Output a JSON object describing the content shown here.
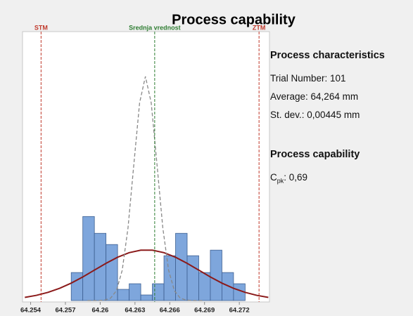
{
  "chart_data": {
    "type": "histogram",
    "title": "Process capability",
    "bins": [
      64.2575,
      64.2585,
      64.2595,
      64.2605,
      64.2615,
      64.2625,
      64.2635,
      64.2645,
      64.2655,
      64.2665,
      64.2675,
      64.2685,
      64.2695,
      64.2705,
      64.2715,
      64.2725
    ],
    "values": [
      5,
      15,
      12,
      10,
      2,
      3,
      1,
      3,
      8,
      12,
      8,
      5,
      9,
      5,
      3
    ],
    "color": "#7ea6dc",
    "xlim": [
      64.2533,
      64.2746
    ],
    "xticks": [
      64.254,
      64.257,
      64.26,
      64.263,
      64.266,
      64.269,
      64.272
    ],
    "ylim": [
      0,
      48
    ],
    "curves": [
      {
        "color": "#8b1a1a",
        "style": "solid",
        "x": [
          64.2535,
          64.2545,
          64.2555,
          64.2565,
          64.2575,
          64.2585,
          64.2595,
          64.2605,
          64.2615,
          64.2625,
          64.2635,
          64.2645,
          64.2655,
          64.2665,
          64.2675,
          64.2685,
          64.2695,
          64.2705,
          64.2715,
          64.2725,
          64.2735,
          64.2745
        ],
        "values": [
          0.56,
          0.93,
          1.46,
          2.19,
          3.11,
          4.22,
          5.43,
          6.64,
          7.73,
          8.55,
          8.99,
          8.99,
          8.55,
          7.73,
          6.64,
          5.43,
          4.22,
          3.11,
          2.19,
          1.46,
          0.93,
          0.56
        ]
      },
      {
        "color": "#888888",
        "style": "dashed",
        "x": [
          64.2589,
          64.2594,
          64.2599,
          64.2604,
          64.2609,
          64.2614,
          64.2619,
          64.2624,
          64.2629,
          64.2634,
          64.2639,
          64.2644,
          64.2649,
          64.2654,
          64.2659,
          64.2664,
          64.2669,
          64.2674,
          64.2679,
          64.2684,
          64.2689
        ],
        "values": [
          0,
          0,
          0.01,
          0.09,
          0.44,
          1.76,
          5.41,
          12.99,
          24.26,
          35.3,
          40,
          35.3,
          24.26,
          12.99,
          5.41,
          1.76,
          0.44,
          0.09,
          0.01,
          0,
          0
        ]
      }
    ],
    "reference_lines": [
      {
        "label": "STM",
        "value": 64.2549,
        "color": "#c0392b"
      },
      {
        "label": "Srednja vrednost",
        "value": 64.2647,
        "color": "#2e7d32"
      },
      {
        "label": "ZTM",
        "value": 64.2737,
        "color": "#c0392b"
      }
    ]
  },
  "panel": {
    "characteristics_title": "Process characteristics",
    "trial": "Trial Number: 101",
    "average": "Average: 64,264 mm",
    "stdev": "St. dev.: 0,00445 mm",
    "capability_title": "Process capability",
    "cpk": {
      "symbol": "C",
      "subscript": "pk",
      "text": ": 0,69"
    }
  }
}
